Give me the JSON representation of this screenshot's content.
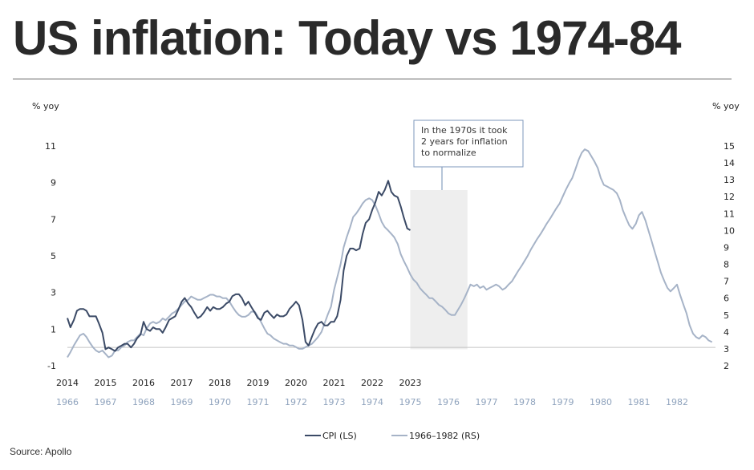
{
  "title": "US inflation: Today vs 1974-84",
  "source": "Source: Apollo",
  "chart_data": {
    "type": "line",
    "left_axis_label": "% yoy",
    "right_axis_label": "% yoy",
    "left_ylim": [
      -1,
      11
    ],
    "left_ticks": [
      "11",
      "9",
      "7",
      "5",
      "3",
      "1",
      "-1"
    ],
    "right_ylim": [
      2,
      15
    ],
    "right_ticks": [
      "15",
      "14",
      "13",
      "12",
      "11",
      "10",
      "9",
      "8",
      "7",
      "6",
      "5",
      "4",
      "3",
      "2"
    ],
    "x_labels_top": [
      "2014",
      "2015",
      "2016",
      "2017",
      "2018",
      "2019",
      "2020",
      "2021",
      "2022",
      "2023"
    ],
    "x_labels_bottom": [
      "1966",
      "1967",
      "1968",
      "1969",
      "1970",
      "1971",
      "1972",
      "1973",
      "1974",
      "1975",
      "1976",
      "1977",
      "1978",
      "1979",
      "1980",
      "1981",
      "1982"
    ],
    "annotation": [
      "In the 1970s it took",
      "2 years for inflation",
      "to normalize"
    ],
    "shaded_period": [
      1975.0,
      1976.5
    ],
    "series": [
      {
        "name": "CPI (LS)",
        "axis": "left",
        "color": "#3b4a66",
        "x": [
          2014.0,
          2014.08,
          2014.17,
          2014.25,
          2014.33,
          2014.42,
          2014.5,
          2014.58,
          2014.67,
          2014.75,
          2014.83,
          2014.92,
          2015.0,
          2015.08,
          2015.17,
          2015.25,
          2015.33,
          2015.42,
          2015.5,
          2015.58,
          2015.67,
          2015.75,
          2015.83,
          2015.92,
          2016.0,
          2016.08,
          2016.17,
          2016.25,
          2016.33,
          2016.42,
          2016.5,
          2016.58,
          2016.67,
          2016.75,
          2016.83,
          2016.92,
          2017.0,
          2017.08,
          2017.17,
          2017.25,
          2017.33,
          2017.42,
          2017.5,
          2017.58,
          2017.67,
          2017.75,
          2017.83,
          2017.92,
          2018.0,
          2018.08,
          2018.17,
          2018.25,
          2018.33,
          2018.42,
          2018.5,
          2018.58,
          2018.67,
          2018.75,
          2018.83,
          2018.92,
          2019.0,
          2019.08,
          2019.17,
          2019.25,
          2019.33,
          2019.42,
          2019.5,
          2019.58,
          2019.67,
          2019.75,
          2019.83,
          2019.92,
          2020.0,
          2020.08,
          2020.17,
          2020.25,
          2020.33,
          2020.42,
          2020.5,
          2020.58,
          2020.67,
          2020.75,
          2020.83,
          2020.92,
          2021.0,
          2021.08,
          2021.17,
          2021.25,
          2021.33,
          2021.42,
          2021.5,
          2021.58,
          2021.67,
          2021.75,
          2021.83,
          2021.92,
          2022.0,
          2022.08,
          2022.17,
          2022.25,
          2022.33,
          2022.42,
          2022.5,
          2022.58,
          2022.67,
          2022.75,
          2022.83,
          2022.92,
          2023.0
        ],
        "values": [
          1.6,
          1.1,
          1.5,
          2.0,
          2.1,
          2.1,
          2.0,
          1.7,
          1.7,
          1.7,
          1.3,
          0.8,
          -0.1,
          0.0,
          -0.1,
          -0.2,
          0.0,
          0.1,
          0.2,
          0.2,
          0.0,
          0.2,
          0.5,
          0.7,
          1.4,
          1.0,
          0.9,
          1.1,
          1.0,
          1.0,
          0.8,
          1.1,
          1.5,
          1.6,
          1.7,
          2.1,
          2.5,
          2.7,
          2.4,
          2.2,
          1.9,
          1.6,
          1.7,
          1.9,
          2.2,
          2.0,
          2.2,
          2.1,
          2.1,
          2.2,
          2.4,
          2.5,
          2.8,
          2.9,
          2.9,
          2.7,
          2.3,
          2.5,
          2.2,
          1.9,
          1.6,
          1.5,
          1.9,
          2.0,
          1.8,
          1.6,
          1.8,
          1.7,
          1.7,
          1.8,
          2.1,
          2.3,
          2.5,
          2.3,
          1.5,
          0.3,
          0.1,
          0.6,
          1.0,
          1.3,
          1.4,
          1.2,
          1.2,
          1.4,
          1.4,
          1.7,
          2.6,
          4.2,
          5.0,
          5.4,
          5.4,
          5.3,
          5.4,
          6.2,
          6.8,
          7.0,
          7.5,
          7.9,
          8.5,
          8.3,
          8.6,
          9.1,
          8.5,
          8.3,
          8.2,
          7.7,
          7.1,
          6.5,
          6.4
        ]
      },
      {
        "name": "1966–1982 (RS)",
        "axis": "right",
        "color": "#a6b3c7",
        "x": [
          1966.0,
          1966.08,
          1966.17,
          1966.25,
          1966.33,
          1966.42,
          1966.5,
          1966.58,
          1966.67,
          1966.75,
          1966.83,
          1966.92,
          1967.0,
          1967.08,
          1967.17,
          1967.25,
          1967.33,
          1967.42,
          1967.5,
          1967.58,
          1967.67,
          1967.75,
          1967.83,
          1967.92,
          1968.0,
          1968.08,
          1968.17,
          1968.25,
          1968.33,
          1968.42,
          1968.5,
          1968.58,
          1968.67,
          1968.75,
          1968.83,
          1968.92,
          1969.0,
          1969.08,
          1969.17,
          1969.25,
          1969.33,
          1969.42,
          1969.5,
          1969.58,
          1969.67,
          1969.75,
          1969.83,
          1969.92,
          1970.0,
          1970.08,
          1970.17,
          1970.25,
          1970.33,
          1970.42,
          1970.5,
          1970.58,
          1970.67,
          1970.75,
          1970.83,
          1970.92,
          1971.0,
          1971.08,
          1971.17,
          1971.25,
          1971.33,
          1971.42,
          1971.5,
          1971.58,
          1971.67,
          1971.75,
          1971.83,
          1971.92,
          1972.0,
          1972.08,
          1972.17,
          1972.25,
          1972.33,
          1972.42,
          1972.5,
          1972.58,
          1972.67,
          1972.75,
          1972.83,
          1972.92,
          1973.0,
          1973.08,
          1973.17,
          1973.25,
          1973.33,
          1973.42,
          1973.5,
          1973.58,
          1973.67,
          1973.75,
          1973.83,
          1973.92,
          1974.0,
          1974.08,
          1974.17,
          1974.25,
          1974.33,
          1974.42,
          1974.5,
          1974.58,
          1974.67,
          1974.75,
          1974.83,
          1974.92,
          1975.0,
          1975.08,
          1975.17,
          1975.25,
          1975.33,
          1975.42,
          1975.5,
          1975.58,
          1975.67,
          1975.75,
          1975.83,
          1975.92,
          1976.0,
          1976.08,
          1976.17,
          1976.25,
          1976.33,
          1976.42,
          1976.5,
          1976.58,
          1976.67,
          1976.75,
          1976.83,
          1976.92,
          1977.0,
          1977.08,
          1977.17,
          1977.25,
          1977.33,
          1977.42,
          1977.5,
          1977.58,
          1977.67,
          1977.75,
          1977.83,
          1977.92,
          1978.0,
          1978.08,
          1978.17,
          1978.25,
          1978.33,
          1978.42,
          1978.5,
          1978.58,
          1978.67,
          1978.75,
          1978.83,
          1978.92,
          1979.0,
          1979.08,
          1979.17,
          1979.25,
          1979.33,
          1979.42,
          1979.5,
          1979.58,
          1979.67,
          1979.75,
          1979.83,
          1979.92,
          1980.0,
          1980.08,
          1980.17,
          1980.25,
          1980.33,
          1980.42,
          1980.5,
          1980.58,
          1980.67,
          1980.75,
          1980.83,
          1980.92,
          1981.0,
          1981.08,
          1981.17,
          1981.25,
          1981.33,
          1981.42,
          1981.5,
          1981.58,
          1981.67,
          1981.75,
          1981.83,
          1981.92,
          1982.0,
          1982.08,
          1982.17,
          1982.25,
          1982.33,
          1982.42,
          1982.5,
          1982.58,
          1982.67,
          1982.75,
          1982.83,
          1982.92
        ],
        "values": [
          2.5,
          2.8,
          3.2,
          3.5,
          3.8,
          3.9,
          3.7,
          3.4,
          3.1,
          2.9,
          2.8,
          2.9,
          2.7,
          2.5,
          2.6,
          2.9,
          2.9,
          3.1,
          3.2,
          3.4,
          3.5,
          3.5,
          3.7,
          3.9,
          3.8,
          4.2,
          4.5,
          4.6,
          4.5,
          4.6,
          4.8,
          4.7,
          4.9,
          5.1,
          5.2,
          5.4,
          5.6,
          5.8,
          5.9,
          6.1,
          6.0,
          5.9,
          5.9,
          6.0,
          6.1,
          6.2,
          6.2,
          6.1,
          6.1,
          6.0,
          6.0,
          5.8,
          5.5,
          5.2,
          5.0,
          4.9,
          4.9,
          5.0,
          5.2,
          5.2,
          4.9,
          4.6,
          4.2,
          3.9,
          3.8,
          3.6,
          3.5,
          3.4,
          3.3,
          3.3,
          3.2,
          3.2,
          3.1,
          3.0,
          3.0,
          3.1,
          3.2,
          3.3,
          3.5,
          3.7,
          4.0,
          4.5,
          5.0,
          5.5,
          6.5,
          7.2,
          8.0,
          9.0,
          9.6,
          10.2,
          10.8,
          11.0,
          11.3,
          11.6,
          11.8,
          11.9,
          11.8,
          11.5,
          11.0,
          10.5,
          10.2,
          10.0,
          9.8,
          9.6,
          9.2,
          8.6,
          8.2,
          7.8,
          7.4,
          7.1,
          6.9,
          6.6,
          6.4,
          6.2,
          6.0,
          6.0,
          5.8,
          5.6,
          5.5,
          5.3,
          5.1,
          5.0,
          5.0,
          5.3,
          5.6,
          6.0,
          6.4,
          6.8,
          6.7,
          6.8,
          6.6,
          6.7,
          6.5,
          6.6,
          6.7,
          6.8,
          6.7,
          6.5,
          6.6,
          6.8,
          7.0,
          7.3,
          7.6,
          7.9,
          8.2,
          8.5,
          8.9,
          9.2,
          9.5,
          9.8,
          10.1,
          10.4,
          10.7,
          11.0,
          11.3,
          11.6,
          12.0,
          12.4,
          12.8,
          13.1,
          13.6,
          14.2,
          14.6,
          14.8,
          14.7,
          14.4,
          14.1,
          13.7,
          13.1,
          12.7,
          12.6,
          12.5,
          12.4,
          12.2,
          11.8,
          11.2,
          10.7,
          10.3,
          10.1,
          10.4,
          10.9,
          11.1,
          10.6,
          10.0,
          9.4,
          8.7,
          8.1,
          7.5,
          7.0,
          6.6,
          6.4,
          6.6,
          6.8,
          6.2,
          5.6,
          5.1,
          4.4,
          3.9,
          3.7,
          3.6,
          3.8,
          3.7,
          3.5,
          3.4
        ]
      }
    ]
  },
  "legend": [
    {
      "label": "CPI (LS)",
      "color": "#3b4a66"
    },
    {
      "label": "1966–1982 (RS)",
      "color": "#a6b3c7"
    }
  ]
}
